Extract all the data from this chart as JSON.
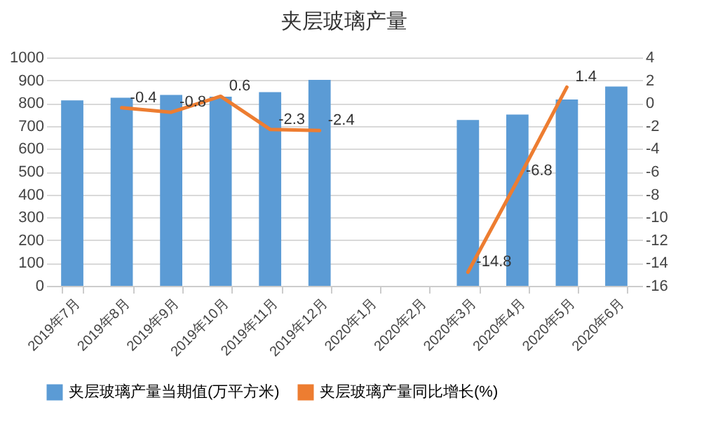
{
  "chart_data": {
    "type": "bar",
    "title": "夹层玻璃产量",
    "categories": [
      "2019年7月",
      "2019年8月",
      "2019年9月",
      "2019年10月",
      "2019年11月",
      "2019年12月",
      "2020年1月",
      "2020年2月",
      "2020年3月",
      "2020年4月",
      "2020年5月",
      "2020年6月"
    ],
    "series": [
      {
        "name": "夹层玻璃产量当期值(万平方米)",
        "color": "#5b9bd5",
        "values": [
          812,
          824,
          836,
          828,
          848,
          902,
          null,
          null,
          726,
          750,
          816,
          873
        ]
      },
      {
        "name": "夹层玻璃产量同比增长(%)",
        "type": "line",
        "axis": "y2",
        "color": "#ed7d31",
        "values": [
          null,
          -0.4,
          -0.8,
          0.6,
          -2.3,
          -2.4,
          null,
          null,
          -14.8,
          -6.8,
          1.4,
          null
        ],
        "value_labels": [
          null,
          "-0.4",
          "-0.8",
          "0.6",
          "-2.3",
          "-2.4",
          null,
          null,
          "-14.8",
          "-6.8",
          "1.4",
          null
        ]
      }
    ],
    "ylim": [
      0,
      1000
    ],
    "yticks": [
      0,
      100,
      200,
      300,
      400,
      500,
      600,
      700,
      800,
      900,
      1000
    ],
    "y2lim": [
      -16,
      4
    ],
    "y2ticks": [
      -16,
      -14,
      -12,
      -10,
      -8,
      -6,
      -4,
      -2,
      0,
      2,
      4
    ],
    "grid": "y",
    "legend": "bottom"
  }
}
